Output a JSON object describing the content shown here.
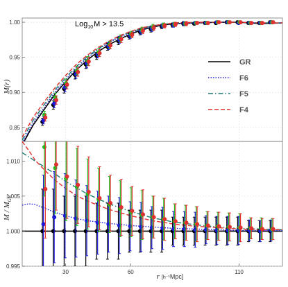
{
  "chart_data": [
    {
      "type": "line",
      "panel": "top",
      "annotation": "Log",
      "annotation_sub": "10",
      "annotation_rest": "M > 13.5",
      "ylabel": "M(r)",
      "xlim": [
        10,
        130
      ],
      "ylim": [
        0.83,
        1.006
      ],
      "yticks": [
        0.85,
        0.9,
        0.95,
        1.0
      ],
      "ytick_labels": [
        "0.85",
        "0.90",
        "0.95",
        "1.00"
      ],
      "grid": true,
      "legend_position": "center-right",
      "curves": [
        {
          "name": "GR",
          "color": "#000000",
          "dash": "solid",
          "x": [
            10,
            15,
            20,
            25,
            30,
            35,
            40,
            45,
            50,
            55,
            60,
            65,
            70,
            75,
            80,
            90,
            100,
            110,
            120,
            130
          ],
          "y": [
            0.825,
            0.853,
            0.875,
            0.897,
            0.915,
            0.932,
            0.946,
            0.958,
            0.968,
            0.976,
            0.983,
            0.989,
            0.993,
            0.996,
            0.998,
            0.999,
            1.0,
            1.0,
            0.998,
            0.999
          ]
        },
        {
          "name": "F6",
          "color": "#1a1ad6",
          "dash": "dotted",
          "x": [
            10,
            15,
            20,
            25,
            30,
            35,
            40,
            45,
            50,
            55,
            60,
            65,
            70,
            75,
            80,
            90,
            100,
            110,
            120,
            130
          ],
          "y": [
            0.828,
            0.856,
            0.878,
            0.9,
            0.918,
            0.935,
            0.949,
            0.961,
            0.971,
            0.979,
            0.985,
            0.99,
            0.994,
            0.997,
            0.998,
            0.999,
            1.0,
            1.0,
            0.999,
            0.999
          ]
        },
        {
          "name": "F5",
          "color": "#1a7a70",
          "dash": "dashdot",
          "x": [
            10,
            15,
            20,
            25,
            30,
            35,
            40,
            45,
            50,
            55,
            60,
            65,
            70,
            75,
            80,
            90,
            100,
            110,
            120,
            130
          ],
          "y": [
            0.832,
            0.86,
            0.882,
            0.903,
            0.921,
            0.937,
            0.951,
            0.962,
            0.972,
            0.98,
            0.986,
            0.991,
            0.995,
            0.997,
            0.999,
            1.0,
            1.0,
            1.0,
            0.999,
            0.999
          ]
        },
        {
          "name": "F4",
          "color": "#e03030",
          "dash": "dashed",
          "x": [
            10,
            15,
            20,
            25,
            30,
            35,
            40,
            45,
            50,
            55,
            60,
            65,
            70,
            75,
            80,
            90,
            100,
            110,
            120,
            130
          ],
          "y": [
            0.836,
            0.864,
            0.886,
            0.906,
            0.924,
            0.94,
            0.953,
            0.964,
            0.973,
            0.981,
            0.987,
            0.992,
            0.995,
            0.997,
            0.999,
            1.0,
            1.0,
            1.0,
            0.999,
            0.999
          ]
        }
      ],
      "points": [
        {
          "color": "#000000",
          "x": [
            20,
            25,
            30,
            35,
            40,
            45,
            50,
            55,
            60,
            65,
            70,
            75,
            80,
            85,
            90,
            95,
            100,
            105,
            110,
            115,
            120,
            125
          ],
          "y": [
            0.858,
            0.882,
            0.905,
            0.925,
            0.94,
            0.952,
            0.965,
            0.973,
            0.98,
            0.986,
            0.99,
            0.994,
            0.996,
            0.998,
            0.998,
            0.999,
            0.999,
            1.0,
            1.0,
            0.999,
            0.999,
            1.0
          ],
          "err": [
            0.005,
            0.006,
            0.006,
            0.006,
            0.006,
            0.005,
            0.005,
            0.005,
            0.004,
            0.004,
            0.004,
            0.003,
            0.003,
            0.003,
            0.002,
            0.002,
            0.002,
            0.002,
            0.002,
            0.002,
            0.002,
            0.002
          ]
        },
        {
          "color": "#1a1ad6",
          "x": [
            20,
            25,
            30,
            35,
            40,
            45,
            50,
            55,
            60,
            65,
            70,
            75,
            80,
            85,
            90,
            95,
            100,
            105,
            110,
            115,
            120,
            125
          ],
          "y": [
            0.86,
            0.884,
            0.907,
            0.926,
            0.941,
            0.954,
            0.966,
            0.975,
            0.981,
            0.987,
            0.991,
            0.995,
            0.996,
            0.998,
            0.999,
            0.999,
            1.0,
            1.0,
            0.999,
            0.999,
            0.999,
            1.0
          ],
          "err": [
            0.005,
            0.006,
            0.006,
            0.006,
            0.006,
            0.005,
            0.005,
            0.005,
            0.004,
            0.004,
            0.004,
            0.003,
            0.003,
            0.003,
            0.002,
            0.002,
            0.002,
            0.002,
            0.002,
            0.002,
            0.002,
            0.002
          ]
        },
        {
          "color": "#22bb22",
          "x": [
            20,
            25,
            30,
            35,
            40,
            45,
            50,
            55,
            60,
            65,
            70,
            75,
            80,
            85,
            90,
            95,
            100,
            105,
            110,
            115,
            120,
            125
          ],
          "y": [
            0.868,
            0.893,
            0.913,
            0.931,
            0.945,
            0.957,
            0.968,
            0.977,
            0.983,
            0.989,
            0.993,
            0.996,
            0.997,
            0.998,
            0.999,
            0.999,
            1.0,
            1.0,
            1.0,
            0.999,
            0.999,
            1.0
          ],
          "err": [
            0.005,
            0.006,
            0.006,
            0.006,
            0.006,
            0.005,
            0.005,
            0.005,
            0.004,
            0.004,
            0.004,
            0.003,
            0.003,
            0.003,
            0.002,
            0.002,
            0.002,
            0.002,
            0.002,
            0.002,
            0.002,
            0.002
          ]
        },
        {
          "color": "#e03030",
          "x": [
            20,
            25,
            30,
            35,
            40,
            45,
            50,
            55,
            60,
            65,
            70,
            75,
            80,
            85,
            90,
            95,
            100,
            105,
            110,
            115,
            120,
            125
          ],
          "y": [
            0.864,
            0.889,
            0.911,
            0.929,
            0.944,
            0.956,
            0.967,
            0.976,
            0.982,
            0.988,
            0.992,
            0.995,
            0.997,
            0.998,
            0.999,
            0.999,
            1.0,
            1.0,
            1.0,
            0.999,
            0.999,
            1.0
          ],
          "err": [
            0.005,
            0.006,
            0.006,
            0.006,
            0.006,
            0.005,
            0.005,
            0.005,
            0.004,
            0.004,
            0.004,
            0.003,
            0.003,
            0.003,
            0.002,
            0.002,
            0.002,
            0.002,
            0.002,
            0.002,
            0.002,
            0.002
          ]
        }
      ]
    },
    {
      "type": "line",
      "panel": "bottom",
      "ylabel": "M / M",
      "ylabel_sub": "GR",
      "xlabel_italic": "r",
      "xlabel_unit_small": "[h⁻¹",
      "xlabel_unit_rest": "Mpc]",
      "xlim": [
        10,
        130
      ],
      "ylim": [
        0.995,
        1.0128
      ],
      "xticks": [
        30,
        60,
        110
      ],
      "xtick_labels": [
        "30",
        "60",
        "110"
      ],
      "yticks": [
        0.995,
        1.0,
        1.005,
        1.01
      ],
      "ytick_labels": [
        "0.995",
        "1.000",
        "1.005",
        "1.010"
      ],
      "grid": true,
      "curves": [
        {
          "name": "GR",
          "color": "#000000",
          "dash": "solid",
          "x": [
            10,
            130
          ],
          "y": [
            1.0,
            1.0
          ]
        },
        {
          "name": "F6",
          "color": "#1a1ad6",
          "dash": "dotted",
          "x": [
            10,
            13,
            16,
            20,
            25,
            30,
            35,
            40,
            50,
            60,
            70,
            80,
            90,
            100,
            110,
            120,
            130
          ],
          "y": [
            1.0037,
            1.0039,
            1.0038,
            1.0033,
            1.0027,
            1.0022,
            1.0018,
            1.0015,
            1.0011,
            1.0008,
            1.0006,
            1.0004,
            1.0003,
            1.0002,
            1.0001,
            1.0001,
            1.0001
          ]
        },
        {
          "name": "F5",
          "color": "#1a7a70",
          "dash": "dashdot",
          "x": [
            10,
            15,
            20,
            25,
            30,
            35,
            40,
            50,
            60,
            70,
            80,
            90,
            100,
            110,
            120,
            130
          ],
          "y": [
            1.0112,
            1.0102,
            1.0092,
            1.0082,
            1.0071,
            1.0062,
            1.0053,
            1.0039,
            1.0028,
            1.0019,
            1.0013,
            1.0009,
            1.0006,
            1.0004,
            1.0003,
            1.0002
          ]
        },
        {
          "name": "F4",
          "color": "#e03030",
          "dash": "dashed",
          "x": [
            10,
            13,
            16,
            20,
            25,
            30,
            35,
            40,
            50,
            60,
            70,
            80,
            90,
            100,
            110,
            120,
            130
          ],
          "y": [
            1.0128,
            1.0115,
            1.0101,
            1.0088,
            1.0073,
            1.0061,
            1.0051,
            1.0043,
            1.0031,
            1.0022,
            1.0015,
            1.001,
            1.0007,
            1.0005,
            1.0003,
            1.0002,
            1.0002
          ]
        }
      ],
      "points": [
        {
          "color": "#000000",
          "x": [
            20,
            25,
            30,
            35,
            40,
            45,
            50,
            55,
            60,
            65,
            70,
            75,
            80,
            85,
            90,
            95,
            100,
            105,
            110,
            115,
            120,
            125
          ],
          "y": [
            1.0,
            1.0,
            1.0,
            1.0,
            1.0,
            1.0,
            1.0,
            1.0,
            1.0,
            1.0,
            1.0,
            1.0,
            1.0,
            1.0,
            1.0,
            1.0,
            1.0,
            1.0,
            1.0,
            1.0,
            1.0,
            1.0
          ],
          "err": [
            0.006,
            0.006,
            0.005,
            0.005,
            0.005,
            0.004,
            0.004,
            0.004,
            0.003,
            0.003,
            0.003,
            0.003,
            0.002,
            0.002,
            0.002,
            0.002,
            0.002,
            0.002,
            0.002,
            0.0015,
            0.0015,
            0.0015
          ]
        },
        {
          "color": "#1a1ad6",
          "x": [
            20,
            25,
            30,
            35,
            40,
            45,
            50,
            55,
            60,
            65,
            70,
            75,
            80,
            85,
            90,
            95,
            100,
            105,
            110,
            115,
            120,
            125
          ],
          "y": [
            1.001,
            1.002,
            1.0022,
            1.0018,
            1.0015,
            1.0012,
            1.001,
            1.0008,
            1.0007,
            1.0006,
            1.0005,
            1.0004,
            1.0003,
            1.0003,
            1.0002,
            1.0002,
            1.0001,
            1.0001,
            1.0001,
            1.0001,
            1.0,
            1.0001
          ],
          "err": [
            0.007,
            0.0065,
            0.006,
            0.0055,
            0.005,
            0.0045,
            0.004,
            0.004,
            0.0035,
            0.0035,
            0.003,
            0.003,
            0.0025,
            0.0025,
            0.0025,
            0.002,
            0.002,
            0.002,
            0.002,
            0.0015,
            0.0015,
            0.0015
          ]
        },
        {
          "color": "#22bb22",
          "x": [
            20,
            25,
            30,
            35,
            40,
            45,
            50,
            55,
            60,
            65,
            70,
            75,
            80,
            85,
            90,
            95,
            100,
            105,
            110,
            115,
            120,
            125
          ],
          "y": [
            1.012,
            1.009,
            1.0075,
            1.0063,
            1.0053,
            1.0045,
            1.0038,
            1.0032,
            1.0027,
            1.0023,
            1.002,
            1.0017,
            1.0014,
            1.0012,
            1.001,
            1.0008,
            1.0007,
            1.0006,
            1.0005,
            1.0004,
            1.0004,
            1.0003
          ],
          "err": [
            0.007,
            0.0065,
            0.006,
            0.0055,
            0.005,
            0.0045,
            0.004,
            0.004,
            0.0035,
            0.0035,
            0.003,
            0.003,
            0.0025,
            0.0025,
            0.0025,
            0.002,
            0.002,
            0.002,
            0.002,
            0.0015,
            0.0015,
            0.0015
          ]
        },
        {
          "color": "#e03030",
          "x": [
            20,
            25,
            30,
            35,
            40,
            45,
            50,
            55,
            60,
            65,
            70,
            75,
            80,
            85,
            90,
            95,
            100,
            105,
            110,
            115,
            120,
            125
          ],
          "y": [
            1.006,
            1.0095,
            1.0078,
            1.0066,
            1.0056,
            1.0047,
            1.004,
            1.0034,
            1.0029,
            1.0024,
            1.002,
            1.0017,
            1.0014,
            1.0012,
            1.001,
            1.0008,
            1.0007,
            1.0006,
            1.0005,
            1.0004,
            1.0003,
            1.0003
          ],
          "err": [
            0.007,
            0.0065,
            0.006,
            0.0055,
            0.005,
            0.0045,
            0.004,
            0.004,
            0.0035,
            0.0035,
            0.003,
            0.003,
            0.0025,
            0.0025,
            0.0025,
            0.002,
            0.002,
            0.002,
            0.002,
            0.0015,
            0.0015,
            0.0015
          ]
        }
      ]
    }
  ],
  "legend": [
    {
      "label": "GR",
      "color": "#000000",
      "dash": "solid"
    },
    {
      "label": "F6",
      "color": "#1a1ad6",
      "dash": "dotted"
    },
    {
      "label": "F5",
      "color": "#1a7a70",
      "dash": "dashdot"
    },
    {
      "label": "F4",
      "color": "#e03030",
      "dash": "dashed"
    }
  ]
}
